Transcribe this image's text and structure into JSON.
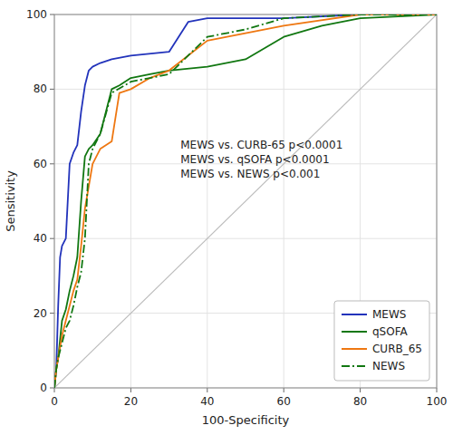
{
  "chart_data": {
    "type": "line",
    "xlabel": "100-Specificity",
    "ylabel": "Sensitivity",
    "xlim": [
      0,
      100
    ],
    "ylim": [
      0,
      100
    ],
    "xticks": [
      0,
      20,
      40,
      60,
      80,
      100
    ],
    "yticks": [
      0,
      20,
      40,
      60,
      80,
      100
    ],
    "grid": true,
    "legend": "lower right",
    "annotation": {
      "text": "MEWS vs. CURB-65 p<0.0001\nMEWS vs. qSOFA p<0.0001\nMEWS vs. NEWS p<0.001",
      "x": 33,
      "y": 67
    },
    "series": [
      {
        "name": "MEWS",
        "color": "#2233bb",
        "line_style": "solid",
        "x": [
          0,
          0.5,
          1,
          1.5,
          2,
          3,
          4,
          5,
          6,
          7,
          8,
          9,
          10,
          12,
          15,
          20,
          30,
          35,
          40,
          60,
          80,
          100
        ],
        "values": [
          0,
          5,
          22,
          35,
          38,
          40,
          60,
          63,
          65,
          74,
          81,
          85,
          86,
          87,
          88,
          89,
          90,
          98,
          99,
          99,
          100,
          100
        ]
      },
      {
        "name": "qSOFA",
        "color": "#117711",
        "line_style": "solid",
        "x": [
          0,
          0.5,
          1,
          2,
          3,
          4,
          5,
          6,
          7,
          8,
          9,
          10,
          12,
          15,
          17,
          20,
          25,
          30,
          40,
          50,
          60,
          70,
          80,
          100
        ],
        "values": [
          0,
          5,
          8,
          18,
          21,
          26,
          30,
          35,
          50,
          62,
          64,
          65,
          68,
          80,
          81,
          83,
          84,
          85,
          86,
          88,
          94,
          97,
          99,
          100
        ]
      },
      {
        "name": "CURB_65",
        "color": "#ee7711",
        "line_style": "solid",
        "x": [
          0,
          0.5,
          1,
          2,
          3,
          4,
          5,
          6,
          7,
          8,
          9,
          10,
          12,
          15,
          17,
          20,
          25,
          30,
          40,
          50,
          60,
          80,
          100
        ],
        "values": [
          0,
          5,
          8,
          14,
          18,
          22,
          26,
          29,
          38,
          48,
          54,
          60,
          64,
          66,
          79,
          80,
          83,
          85,
          93,
          95,
          97,
          100,
          100
        ]
      },
      {
        "name": "NEWS",
        "color": "#117711",
        "line_style": "dashdot",
        "x": [
          0,
          0.5,
          1,
          2,
          3,
          4,
          5,
          6,
          7,
          8,
          9,
          10,
          12,
          15,
          20,
          25,
          30,
          40,
          50,
          60,
          80,
          100
        ],
        "values": [
          0,
          5,
          8,
          12,
          16,
          18,
          22,
          27,
          31,
          40,
          60,
          64,
          68,
          79,
          82,
          83,
          84,
          94,
          96,
          99,
          100,
          100
        ]
      }
    ]
  }
}
